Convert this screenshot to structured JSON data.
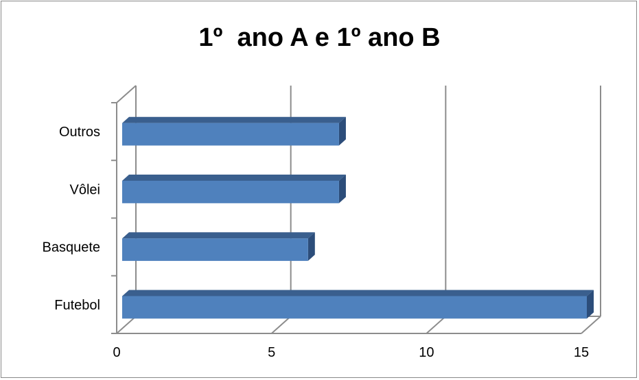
{
  "chart_data": {
    "type": "bar",
    "orientation": "horizontal",
    "style": "3d",
    "title": "1º  ano A e 1º ano B",
    "xlabel": "",
    "ylabel": "",
    "categories": [
      "Futebol",
      "Basquete",
      "Vôlei",
      "Outros"
    ],
    "values": [
      15,
      6,
      7,
      7
    ],
    "xlim": [
      0,
      15
    ],
    "x_ticks": [
      0,
      5,
      10,
      15
    ],
    "grid": true,
    "legend": "none",
    "bar_color": "#4f81bd",
    "bar_top_color": "#3a5f8e",
    "bar_side_color": "#2c4d7a",
    "grid_color": "#8c8c8c"
  }
}
